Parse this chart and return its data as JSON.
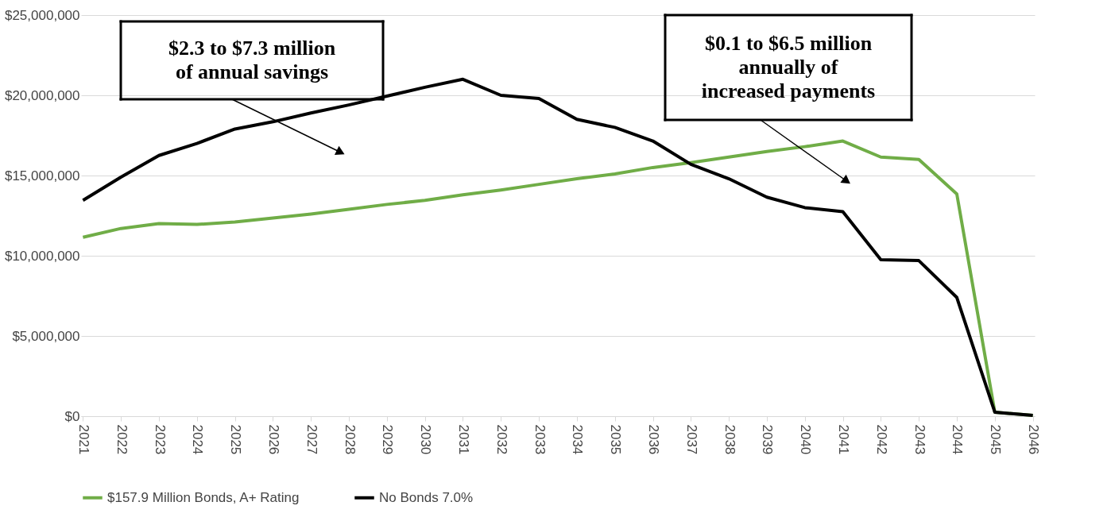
{
  "chart_data": {
    "type": "line",
    "categories": [
      "2021",
      "2022",
      "2023",
      "2024",
      "2025",
      "2026",
      "2027",
      "2028",
      "2029",
      "2030",
      "2031",
      "2032",
      "2033",
      "2034",
      "2035",
      "2036",
      "2037",
      "2038",
      "2039",
      "2040",
      "2041",
      "2042",
      "2043",
      "2044",
      "2045",
      "2046"
    ],
    "series": [
      {
        "name": "$157.9 Million Bonds, A+ Rating",
        "color": "#70ad47",
        "values": [
          11150000,
          11700000,
          12000000,
          11950000,
          12100000,
          12350000,
          12600000,
          12900000,
          13200000,
          13450000,
          13800000,
          14100000,
          14450000,
          14800000,
          15100000,
          15500000,
          15800000,
          16150000,
          16500000,
          16800000,
          17150000,
          16150000,
          16000000,
          13850000,
          250000,
          50000
        ]
      },
      {
        "name": "No Bonds 7.0%",
        "color": "#000000",
        "values": [
          13450000,
          14900000,
          16250000,
          17000000,
          17900000,
          18350000,
          18900000,
          19400000,
          19950000,
          20500000,
          21000000,
          20000000,
          19800000,
          18500000,
          18000000,
          17150000,
          15700000,
          14800000,
          13650000,
          13000000,
          12750000,
          9750000,
          9700000,
          7400000,
          250000,
          50000
        ]
      }
    ],
    "ylim": [
      0,
      25000000
    ],
    "yticks": [
      {
        "value": 0,
        "label": "$0"
      },
      {
        "value": 5000000,
        "label": "$5,000,000"
      },
      {
        "value": 10000000,
        "label": "$10,000,000"
      },
      {
        "value": 15000000,
        "label": "$15,000,000"
      },
      {
        "value": 20000000,
        "label": "$20,000,000"
      },
      {
        "value": 25000000,
        "label": "$25,000,000"
      }
    ],
    "grid": "y",
    "legend": "bottom",
    "marker": "none",
    "line_style": "solid",
    "annotations": [
      "$2.3 to $7.3 million\nof annual savings",
      "$0.1 to $6.5 million\nannually of\nincreased payments"
    ]
  }
}
